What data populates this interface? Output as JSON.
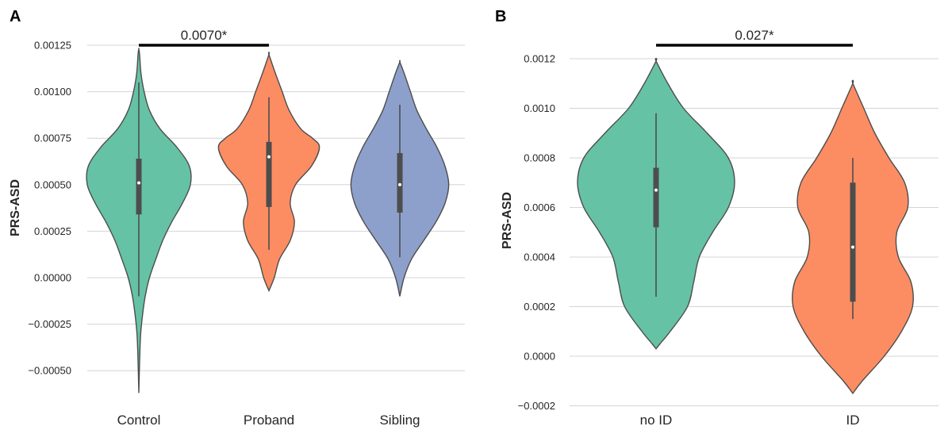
{
  "chart_data": [
    {
      "panel": "A",
      "type": "violin",
      "ylabel": "PRS-ASD",
      "ylim": [
        -0.00062,
        0.00127
      ],
      "yticks": [
        -0.0005,
        -0.00025,
        0.0,
        0.00025,
        0.0005,
        0.00075,
        0.001,
        0.00125
      ],
      "ytick_labels": [
        "−0.00050",
        "−0.00025",
        "0.00000",
        "0.00025",
        "0.00050",
        "0.00075",
        "0.00100",
        "0.00125"
      ],
      "grid": true,
      "significance": {
        "from": "Control",
        "to": "Proband",
        "label": "0.0070*",
        "y": 0.00125
      },
      "categories": [
        "Control",
        "Proband",
        "Sibling"
      ],
      "series": [
        {
          "category": "Control",
          "color": "#66c2a5",
          "stats": {
            "whisker_low": -0.0001,
            "q1": 0.00034,
            "median": 0.00051,
            "q3": 0.00064,
            "whisker_high": 0.00105
          },
          "profile": [
            [
              -0.00062,
              0.0
            ],
            [
              -0.0005,
              0.01
            ],
            [
              -0.0004,
              0.02
            ],
            [
              -0.0003,
              0.035
            ],
            [
              -0.0002,
              0.07
            ],
            [
              -0.0001,
              0.12
            ],
            [
              0.0,
              0.2
            ],
            [
              0.0001,
              0.32
            ],
            [
              0.0002,
              0.45
            ],
            [
              0.0003,
              0.62
            ],
            [
              0.0004,
              0.82
            ],
            [
              0.0005,
              0.97
            ],
            [
              0.0006,
              0.95
            ],
            [
              0.0007,
              0.72
            ],
            [
              0.0008,
              0.4
            ],
            [
              0.0009,
              0.2
            ],
            [
              0.001,
              0.1
            ],
            [
              0.0011,
              0.04
            ],
            [
              0.0012,
              0.015
            ],
            [
              0.00123,
              0.0
            ]
          ]
        },
        {
          "category": "Proband",
          "color": "#fc8d62",
          "stats": {
            "whisker_low": 0.00015,
            "q1": 0.00038,
            "median": 0.00065,
            "q3": 0.00073,
            "whisker_high": 0.00097
          },
          "profile": [
            [
              -7e-05,
              0.0
            ],
            [
              0.0,
              0.1
            ],
            [
              0.0001,
              0.2
            ],
            [
              0.0002,
              0.4
            ],
            [
              0.0003,
              0.48
            ],
            [
              0.0004,
              0.4
            ],
            [
              0.0005,
              0.5
            ],
            [
              0.0006,
              0.8
            ],
            [
              0.0007,
              0.95
            ],
            [
              0.00075,
              0.82
            ],
            [
              0.0008,
              0.6
            ],
            [
              0.0009,
              0.38
            ],
            [
              0.001,
              0.25
            ],
            [
              0.0011,
              0.12
            ],
            [
              0.0012,
              0.0
            ]
          ]
        },
        {
          "category": "Sibling",
          "color": "#8da0cb",
          "stats": {
            "whisker_low": 0.00011,
            "q1": 0.00035,
            "median": 0.0005,
            "q3": 0.00067,
            "whisker_high": 0.00093
          },
          "profile": [
            [
              -0.0001,
              0.0
            ],
            [
              0.0,
              0.08
            ],
            [
              0.0001,
              0.22
            ],
            [
              0.0002,
              0.45
            ],
            [
              0.0003,
              0.68
            ],
            [
              0.0004,
              0.85
            ],
            [
              0.0005,
              0.92
            ],
            [
              0.0006,
              0.85
            ],
            [
              0.0007,
              0.7
            ],
            [
              0.0008,
              0.5
            ],
            [
              0.0009,
              0.32
            ],
            [
              0.001,
              0.2
            ],
            [
              0.0011,
              0.08
            ],
            [
              0.00116,
              0.0
            ]
          ]
        }
      ]
    },
    {
      "panel": "B",
      "type": "violin",
      "ylabel": "PRS-ASD",
      "ylim": [
        -0.0002,
        0.00125
      ],
      "yticks": [
        -0.0002,
        0.0,
        0.0002,
        0.0004,
        0.0006,
        0.0008,
        0.001,
        0.0012
      ],
      "ytick_labels": [
        "−0.0002",
        "0.0000",
        "0.0002",
        "0.0004",
        "0.0006",
        "0.0008",
        "0.0010",
        "0.0012"
      ],
      "grid": true,
      "significance": {
        "from": "no ID",
        "to": "ID",
        "label": "0.027*",
        "y": 0.0012
      },
      "categories": [
        "no ID",
        "ID"
      ],
      "series": [
        {
          "category": "no ID",
          "color": "#66c2a5",
          "stats": {
            "whisker_low": 0.00024,
            "q1": 0.00052,
            "median": 0.00067,
            "q3": 0.00076,
            "whisker_high": 0.00098
          },
          "profile": [
            [
              3e-05,
              0.0
            ],
            [
              5e-05,
              0.05
            ],
            [
              0.0001,
              0.18
            ],
            [
              0.0002,
              0.4
            ],
            [
              0.0003,
              0.48
            ],
            [
              0.0004,
              0.55
            ],
            [
              0.0005,
              0.72
            ],
            [
              0.0006,
              0.92
            ],
            [
              0.0007,
              1.0
            ],
            [
              0.0008,
              0.92
            ],
            [
              0.0009,
              0.65
            ],
            [
              0.001,
              0.35
            ],
            [
              0.0011,
              0.15
            ],
            [
              0.00119,
              0.0
            ]
          ]
        },
        {
          "category": "ID",
          "color": "#fc8d62",
          "stats": {
            "whisker_low": 0.00015,
            "q1": 0.00022,
            "median": 0.00044,
            "q3": 0.0007,
            "whisker_high": 0.0008
          },
          "profile": [
            [
              -0.00015,
              0.0
            ],
            [
              -0.0001,
              0.12
            ],
            [
              0.0,
              0.4
            ],
            [
              0.0001,
              0.62
            ],
            [
              0.0002,
              0.76
            ],
            [
              0.0003,
              0.74
            ],
            [
              0.0004,
              0.58
            ],
            [
              0.0005,
              0.56
            ],
            [
              0.0006,
              0.7
            ],
            [
              0.0007,
              0.66
            ],
            [
              0.0008,
              0.46
            ],
            [
              0.0009,
              0.28
            ],
            [
              0.001,
              0.14
            ],
            [
              0.0011,
              0.0
            ]
          ]
        }
      ]
    }
  ]
}
